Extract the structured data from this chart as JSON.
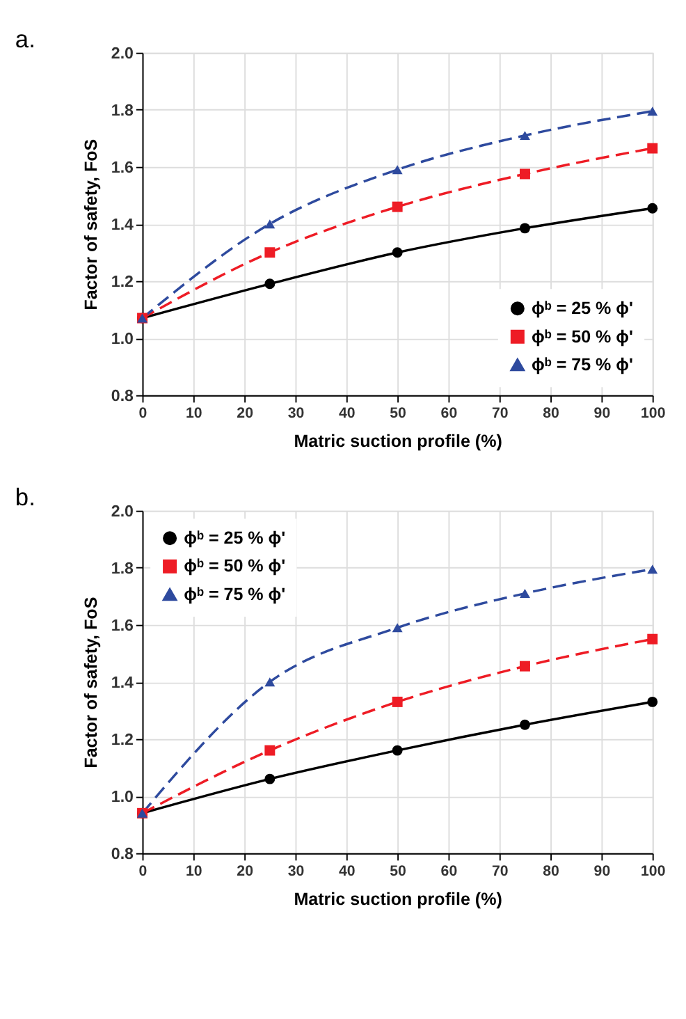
{
  "chart_data": [
    {
      "type": "line",
      "title": "a.",
      "xlabel": "Matric suction profile (%)",
      "ylabel": "Factor of safety, FoS",
      "x": [
        0,
        25,
        50,
        75,
        100
      ],
      "series": [
        {
          "name": "ϕᵇ = 25 % ϕ'",
          "color": "#000000",
          "values": [
            1.07,
            1.19,
            1.3,
            1.385,
            1.455
          ],
          "marker": "circle",
          "line_style": "solid"
        },
        {
          "name": "ϕᵇ = 50 % ϕ'",
          "color": "#ee1c25",
          "values": [
            1.07,
            1.3,
            1.46,
            1.575,
            1.665
          ],
          "marker": "square",
          "line_style": "dashed"
        },
        {
          "name": "ϕᵇ = 75 % ϕ'",
          "color": "#2e4a9e",
          "values": [
            1.07,
            1.4,
            1.59,
            1.71,
            1.795
          ],
          "marker": "triangle",
          "line_style": "dashed"
        }
      ],
      "xlim": [
        0,
        100
      ],
      "xticks": [
        0,
        10,
        20,
        30,
        40,
        50,
        60,
        70,
        80,
        90,
        100
      ],
      "ylim": [
        0.8,
        2.0
      ],
      "yticks": [
        {
          "value": 0.8,
          "label": "0.8"
        },
        {
          "value": 1.0,
          "label": "1.0"
        },
        {
          "value": 1.2,
          "label": "1.2"
        },
        {
          "value": 1.4,
          "label": "1.4"
        },
        {
          "value": 1.6,
          "label": "1.6"
        },
        {
          "value": 1.8,
          "label": "1.8"
        },
        {
          "value": 2.0,
          "label": "2.0"
        }
      ],
      "grid": true,
      "legend": "bottom right"
    },
    {
      "type": "line",
      "title": "b.",
      "xlabel": "Matric suction profile (%)",
      "ylabel": "Factor of safety, FoS",
      "x": [
        0,
        25,
        50,
        75,
        100
      ],
      "series": [
        {
          "name": "ϕᵇ = 25 % ϕ'",
          "color": "#000000",
          "values": [
            0.94,
            1.06,
            1.16,
            1.25,
            1.33
          ],
          "marker": "circle",
          "line_style": "solid"
        },
        {
          "name": "ϕᵇ = 50 % ϕ'",
          "color": "#ee1c25",
          "values": [
            0.94,
            1.16,
            1.33,
            1.455,
            1.55
          ],
          "marker": "square",
          "line_style": "dashed"
        },
        {
          "name": "ϕᵇ = 75 % ϕ'",
          "color": "#2e4a9e",
          "values": [
            0.94,
            1.4,
            1.59,
            1.71,
            1.795
          ],
          "marker": "triangle",
          "line_style": "dashed"
        }
      ],
      "xlim": [
        0,
        100
      ],
      "xticks": [
        0,
        10,
        20,
        30,
        40,
        50,
        60,
        70,
        80,
        90,
        100
      ],
      "ylim": [
        0.8,
        2.0
      ],
      "yticks": [
        {
          "value": 0.8,
          "label": "0.8"
        },
        {
          "value": 1.0,
          "label": "1.0"
        },
        {
          "value": 1.2,
          "label": "1.2"
        },
        {
          "value": 1.4,
          "label": "1.4"
        },
        {
          "value": 1.6,
          "label": "1.6"
        },
        {
          "value": 1.8,
          "label": "1.8"
        },
        {
          "value": 2.0,
          "label": "2.0"
        }
      ],
      "grid": true,
      "legend": "top left"
    }
  ]
}
